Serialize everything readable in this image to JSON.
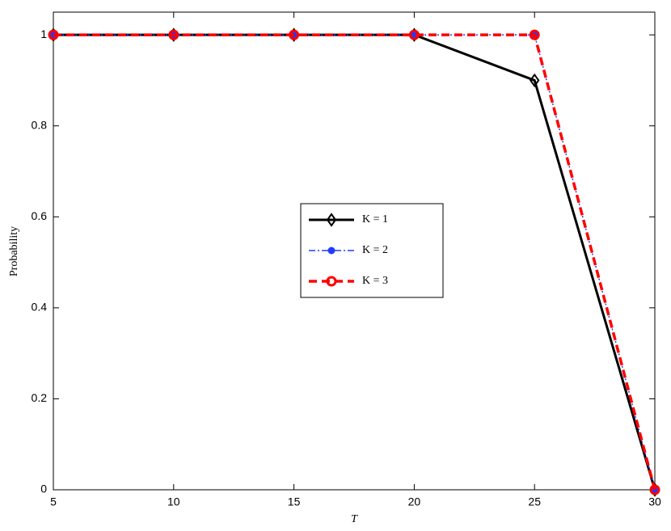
{
  "chart_data": {
    "type": "line",
    "xlabel": "T",
    "ylabel": "Probability",
    "x": [
      5,
      10,
      15,
      20,
      25,
      30
    ],
    "series": [
      {
        "name": "K = 1",
        "color": "#000000",
        "values": [
          1,
          1,
          1,
          1,
          0.9,
          0
        ]
      },
      {
        "name": "K = 2",
        "color": "#1f3cff",
        "values": [
          1,
          1,
          1,
          1,
          1,
          0
        ]
      },
      {
        "name": "K = 3",
        "color": "#ff0000",
        "values": [
          1,
          1,
          1,
          1,
          1,
          0
        ]
      }
    ],
    "xlim": [
      5,
      30
    ],
    "xticks": [
      5,
      10,
      15,
      20,
      25,
      30
    ],
    "ylim": [
      0,
      1.05
    ],
    "yticks": [
      0,
      0.2,
      0.4,
      0.6,
      0.8,
      1
    ],
    "grid": false,
    "legend": "center"
  }
}
